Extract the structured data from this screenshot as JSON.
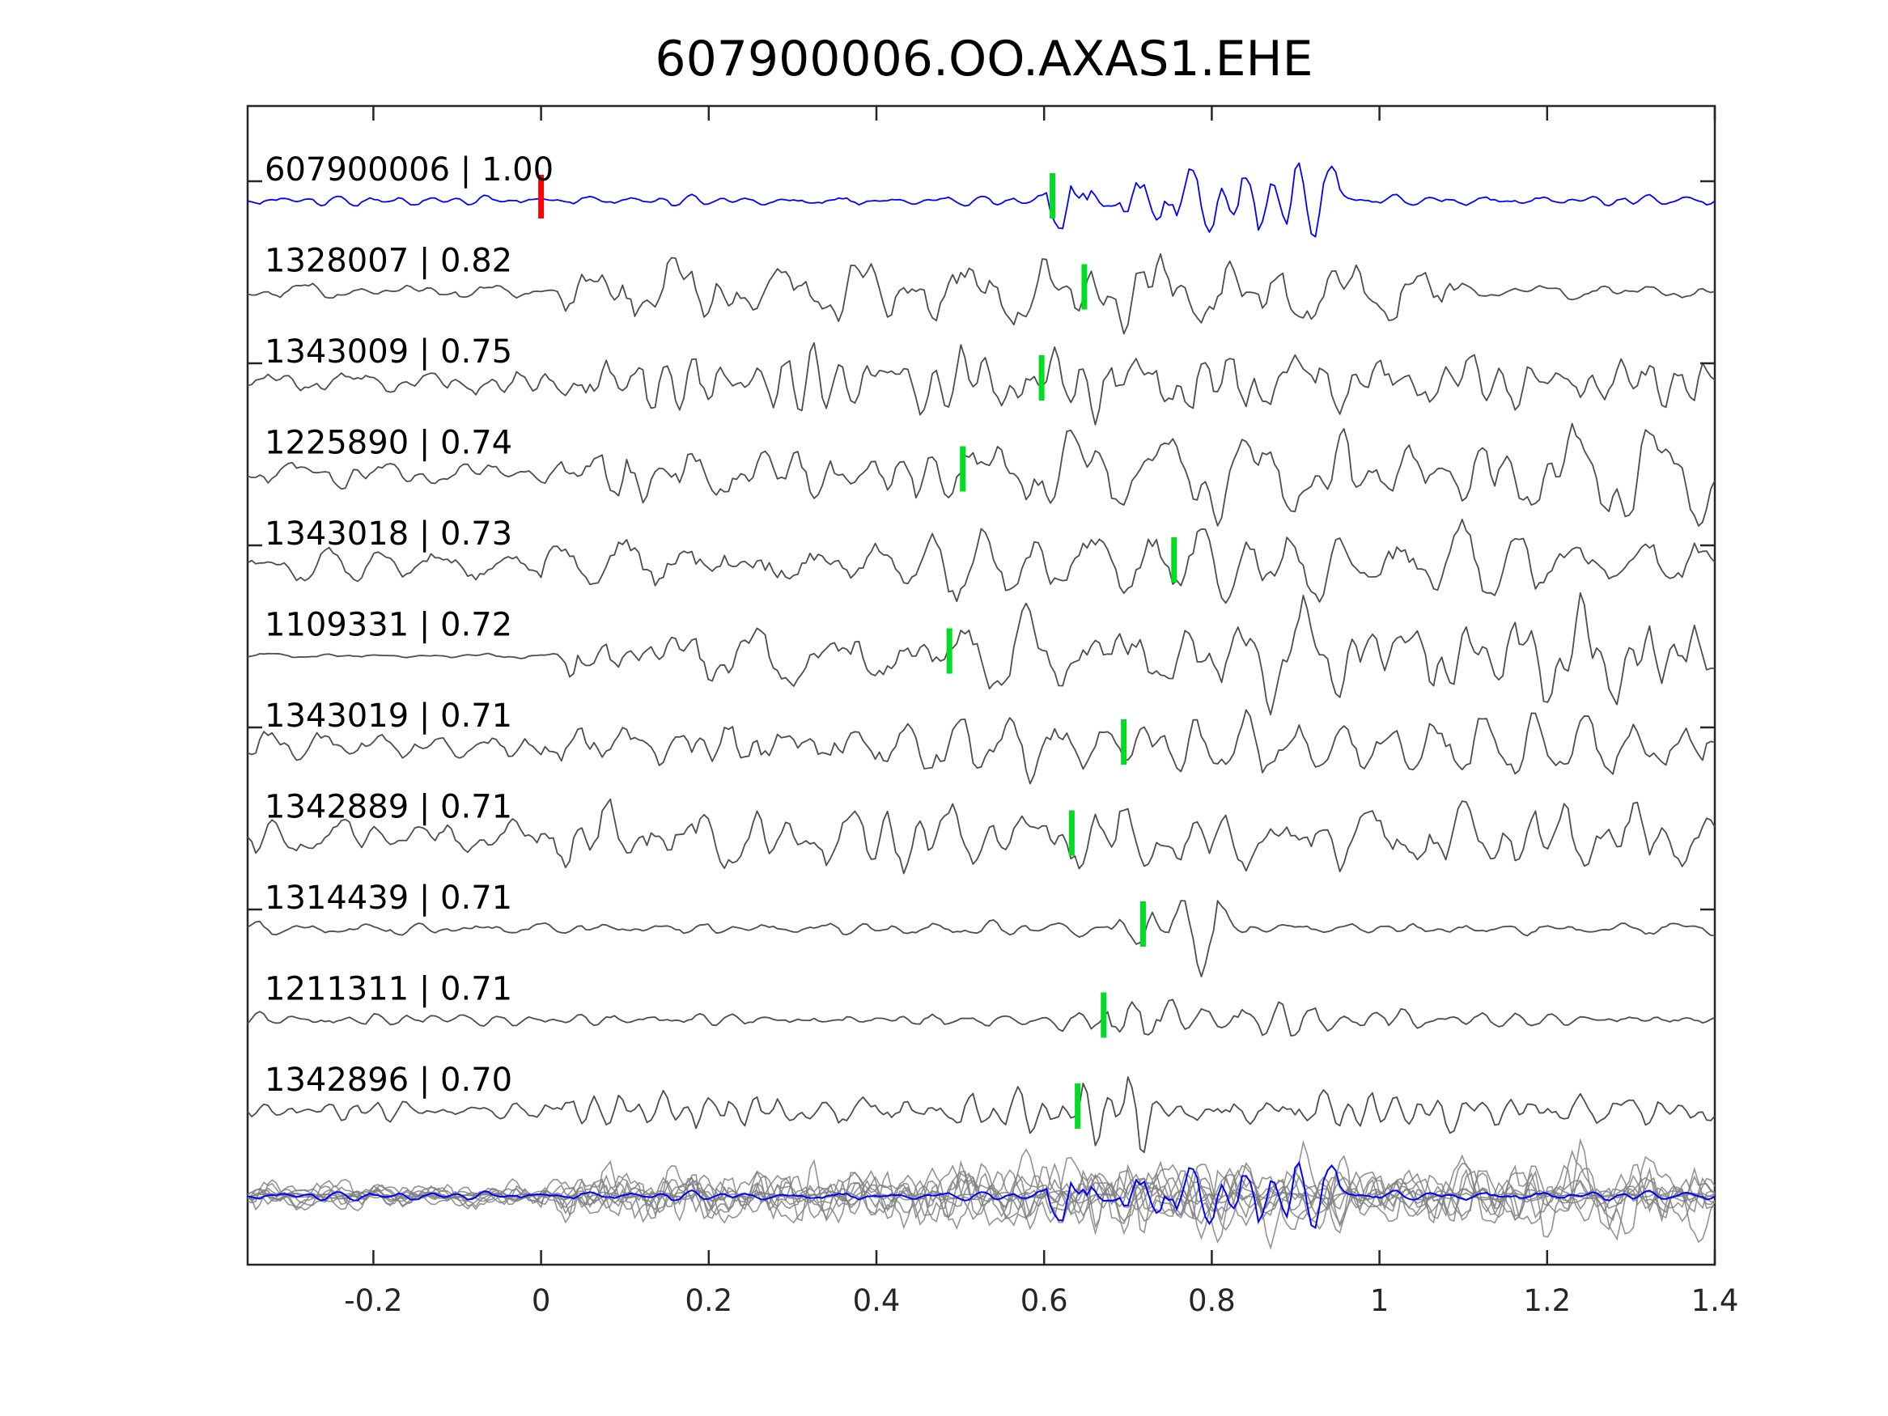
{
  "chart_data": {
    "type": "line",
    "title": "607900006.OO.AXAS1.EHE",
    "xlabel": "",
    "ylabel": "",
    "xlim": [
      -0.35,
      1.4
    ],
    "x_ticks": [
      {
        "value": -0.2,
        "label": "-0.2"
      },
      {
        "value": 0,
        "label": "0"
      },
      {
        "value": 0.2,
        "label": "0.2"
      },
      {
        "value": 0.4,
        "label": "0.4"
      },
      {
        "value": 0.6,
        "label": "0.6"
      },
      {
        "value": 0.8,
        "label": "0.8"
      },
      {
        "value": 1,
        "label": "1"
      },
      {
        "value": 1.2,
        "label": "1.2"
      },
      {
        "value": 1.4,
        "label": "1.4"
      }
    ],
    "grid": false,
    "colors": {
      "template": "#0000ff",
      "trace": "#4d4d4d",
      "overlay": "#808080",
      "origin_pick": "#ff0000",
      "pick": "#00dd22",
      "axes": "#262626"
    },
    "template_trace": {
      "label": "607900006 | 1.00",
      "pick_x": 0.61,
      "origin_pick_x": 0.0,
      "quiet_until": 0.6,
      "seed": 3,
      "noise_level": 0.12,
      "signal_amplitude": 0.85,
      "burst_start": 0.6,
      "burst_end": 0.95
    },
    "series": [
      {
        "label": "1328007 | 0.82",
        "pick_x": 0.648,
        "seed": 11,
        "noise_level": 0.15,
        "signal_amplitude": 0.75,
        "burst_start": 0.02,
        "burst_end": 1.1
      },
      {
        "label": "1343009 | 0.75",
        "pick_x": 0.597,
        "seed": 23,
        "noise_level": 0.35,
        "signal_amplitude": 0.8,
        "burst_start": 0.02,
        "burst_end": 1.4
      },
      {
        "label": "1225890 | 0.74",
        "pick_x": 0.503,
        "seed": 37,
        "noise_level": 0.3,
        "signal_amplitude": 0.85,
        "burst_start": 0.02,
        "burst_end": 1.4
      },
      {
        "label": "1343018 | 0.73",
        "pick_x": 0.755,
        "seed": 41,
        "noise_level": 0.4,
        "signal_amplitude": 0.8,
        "burst_start": 0.0,
        "burst_end": 1.4
      },
      {
        "label": "1109331 | 0.72",
        "pick_x": 0.487,
        "seed": 53,
        "noise_level": 0.05,
        "signal_amplitude": 0.8,
        "burst_start": 0.02,
        "burst_end": 1.4
      },
      {
        "label": "1343019 | 0.71",
        "pick_x": 0.695,
        "seed": 67,
        "noise_level": 0.45,
        "signal_amplitude": 0.75,
        "burst_start": 0.0,
        "burst_end": 1.4
      },
      {
        "label": "1342889 | 0.71",
        "pick_x": 0.633,
        "seed": 71,
        "noise_level": 0.45,
        "signal_amplitude": 0.8,
        "burst_start": 0.0,
        "burst_end": 1.4
      },
      {
        "label": "1314439 | 0.71",
        "pick_x": 0.718,
        "seed": 83,
        "noise_level": 0.15,
        "signal_amplitude": 0.35,
        "burst_start": 0.68,
        "burst_end": 0.85
      },
      {
        "label": "1211311 | 0.71",
        "pick_x": 0.671,
        "seed": 97,
        "noise_level": 0.15,
        "signal_amplitude": 0.4,
        "burst_start": 0.6,
        "burst_end": 1.05
      },
      {
        "label": "1342896 | 0.70",
        "pick_x": 0.64,
        "seed": 101,
        "noise_level": 0.2,
        "signal_amplitude": 0.45,
        "burst_start": 0.0,
        "burst_end": 1.4
      }
    ],
    "overlay_stack": {
      "shown": true
    }
  }
}
